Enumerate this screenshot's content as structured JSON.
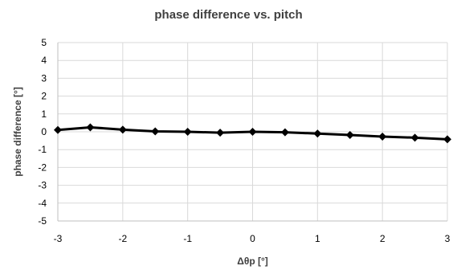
{
  "chart_data": {
    "type": "line",
    "title": "phase difference vs. pitch",
    "xlabel": "Δθp [°]",
    "ylabel": "phase difference [°]",
    "xlim": [
      -3,
      3
    ],
    "ylim": [
      -5,
      5
    ],
    "x_ticks": [
      -3,
      -2,
      -1,
      0,
      1,
      2,
      3
    ],
    "y_ticks": [
      -5,
      -4,
      -3,
      -2,
      -1,
      0,
      1,
      2,
      3,
      4,
      5
    ],
    "grid": true,
    "legend": "none",
    "series": [
      {
        "color": "#000000",
        "marker": "diamond",
        "points": [
          {
            "x": -3.0,
            "y": 0.1
          },
          {
            "x": -2.5,
            "y": 0.25
          },
          {
            "x": -2.0,
            "y": 0.12
          },
          {
            "x": -1.5,
            "y": 0.02
          },
          {
            "x": -1.0,
            "y": 0.0
          },
          {
            "x": -0.5,
            "y": -0.05
          },
          {
            "x": 0.0,
            "y": 0.0
          },
          {
            "x": 0.5,
            "y": -0.03
          },
          {
            "x": 1.0,
            "y": -0.1
          },
          {
            "x": 1.5,
            "y": -0.18
          },
          {
            "x": 2.0,
            "y": -0.27
          },
          {
            "x": 2.5,
            "y": -0.33
          },
          {
            "x": 3.0,
            "y": -0.42
          }
        ]
      }
    ]
  }
}
